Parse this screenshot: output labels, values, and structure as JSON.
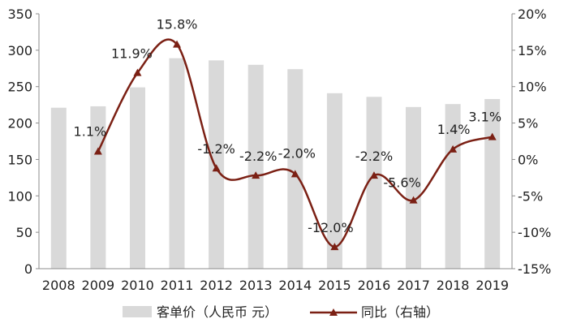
{
  "chart_data": {
    "type": "bar",
    "categories": [
      "2008",
      "2009",
      "2010",
      "2011",
      "2012",
      "2013",
      "2014",
      "2015",
      "2016",
      "2017",
      "2018",
      "2019"
    ],
    "series": [
      {
        "name": "客单价（人民币 元）",
        "type": "bar",
        "axis": "left",
        "color": "#d9d9d9",
        "values": [
          221,
          223,
          249,
          289,
          286,
          280,
          274,
          241,
          236,
          222,
          226,
          233
        ]
      },
      {
        "name": "同比（右轴）",
        "type": "line",
        "axis": "right",
        "color": "#7b2014",
        "marker": "triangle",
        "values": [
          null,
          1.1,
          11.9,
          15.8,
          -1.2,
          -2.2,
          -2.0,
          -12.0,
          -2.2,
          -5.6,
          1.4,
          3.1
        ],
        "labels": [
          null,
          "1.1%",
          "11.9%",
          "15.8%",
          "-1.2%",
          "-2.2%",
          "-2.0%",
          "-12.0%",
          "-2.2%",
          "-5.6%",
          "1.4%",
          "3.1%"
        ]
      }
    ],
    "y_left": {
      "range": [
        0,
        350
      ],
      "ticks": [
        0,
        50,
        100,
        150,
        200,
        250,
        300,
        350
      ],
      "tick_labels": [
        "0",
        "50",
        "100",
        "150",
        "200",
        "250",
        "300",
        "350"
      ]
    },
    "y_right": {
      "range": [
        -15,
        20
      ],
      "ticks": [
        -15,
        -10,
        -5,
        0,
        5,
        10,
        15,
        20
      ],
      "tick_labels": [
        "-15%",
        "-10%",
        "-5%",
        "0%",
        "5%",
        "10%",
        "15%",
        "20%"
      ]
    },
    "legend_position": "bottom",
    "grid": false
  }
}
